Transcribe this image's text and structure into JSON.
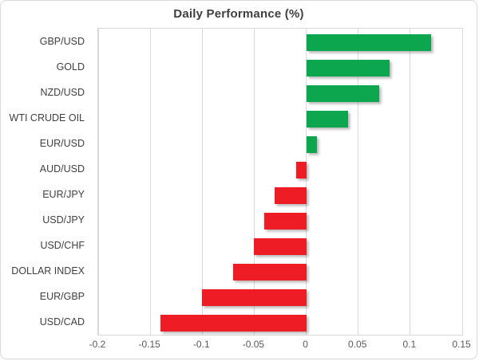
{
  "chart_data": {
    "type": "bar",
    "orientation": "horizontal",
    "title": "Daily Performance (%)",
    "categories": [
      "GBP/USD",
      "GOLD",
      "NZD/USD",
      "WTI CRUDE OIL",
      "EUR/USD",
      "AUD/USD",
      "EUR/JPY",
      "USD/JPY",
      "USD/CHF",
      "DOLLAR INDEX",
      "EUR/GBP",
      "USD/CAD"
    ],
    "values": [
      0.12,
      0.08,
      0.07,
      0.04,
      0.01,
      -0.01,
      -0.03,
      -0.04,
      -0.05,
      -0.07,
      -0.1,
      -0.14
    ],
    "xlabel": "",
    "ylabel": "",
    "xlim": [
      -0.2,
      0.15
    ],
    "x_ticks": [
      -0.2,
      -0.15,
      -0.1,
      -0.05,
      0,
      0.05,
      0.1,
      0.15
    ],
    "x_tick_labels": [
      "-0.2",
      "-0.15",
      "-0.1",
      "-0.05",
      "0",
      "0.05",
      "0.1",
      "0.15"
    ],
    "grid": true,
    "legend": false,
    "positive_color": "#0ca64f",
    "negative_color": "#ee1c25",
    "gridline_color": "#d9d9d9",
    "title_color": "#3f3f3f",
    "category_label_color": "#404040",
    "tick_label_color": "#595959"
  }
}
